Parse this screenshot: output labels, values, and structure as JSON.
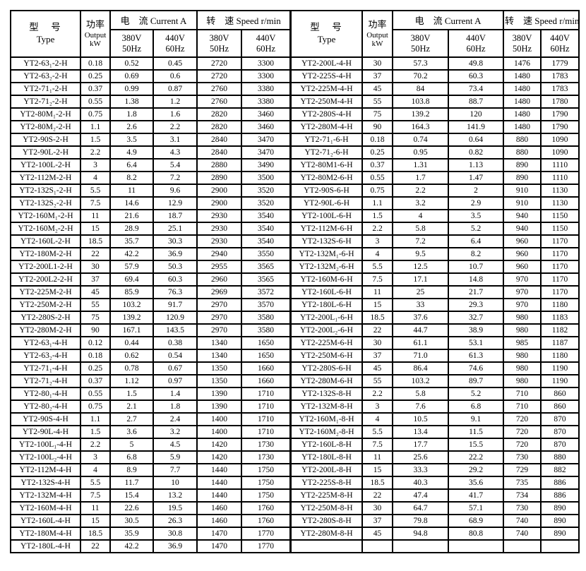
{
  "page": {
    "background_color": "#ffffff",
    "text_color": "#000000",
    "border_color": "#000000"
  },
  "header_labels": {
    "type_zh": "型　号",
    "type_en": "Type",
    "power_zh": "功率",
    "power_en": "Output",
    "power_unit": "kW",
    "current_group": "电　流 Current A",
    "speed_group": "转　速 Speed r/min",
    "col_380v": "380V",
    "col_380hz": "50Hz",
    "col_440v": "440V",
    "col_440hz": "60Hz"
  },
  "left_table": {
    "rows": [
      [
        "YT2-63₁-2-H",
        "0.18",
        "0.52",
        "0.45",
        "2720",
        "3300"
      ],
      [
        "YT2-63₂-2-H",
        "0.25",
        "0.69",
        "0.6",
        "2720",
        "3300"
      ],
      [
        "YT2-71₁-2-H",
        "0.37",
        "0.99",
        "0.87",
        "2760",
        "3380"
      ],
      [
        "YT2-71₂-2-H",
        "0.55",
        "1.38",
        "1.2",
        "2760",
        "3380"
      ],
      [
        "YT2-80M₁-2-H",
        "0.75",
        "1.8",
        "1.6",
        "2820",
        "3460"
      ],
      [
        "YT2-80M₂-2-H",
        "1.1",
        "2.6",
        "2.2",
        "2820",
        "3460"
      ],
      [
        "YT2-90S-2-H",
        "1.5",
        "3.5",
        "3.1",
        "2840",
        "3470"
      ],
      [
        "YT2-90L-2-H",
        "2.2",
        "4.9",
        "4.3",
        "2840",
        "3470"
      ],
      [
        "YT2-100L-2-H",
        "3",
        "6.4",
        "5.4",
        "2880",
        "3490"
      ],
      [
        "YT2-112M-2-H",
        "4",
        "8.2",
        "7.2",
        "2890",
        "3500"
      ],
      [
        "YT2-132S₁-2-H",
        "5.5",
        "11",
        "9.6",
        "2900",
        "3520"
      ],
      [
        "YT2-132S₂-2-H",
        "7.5",
        "14.6",
        "12.9",
        "2900",
        "3520"
      ],
      [
        "YT2-160M₁-2-H",
        "11",
        "21.6",
        "18.7",
        "2930",
        "3540"
      ],
      [
        "YT2-160M₂-2-H",
        "15",
        "28.9",
        "25.1",
        "2930",
        "3540"
      ],
      [
        "YT2-160L-2-H",
        "18.5",
        "35.7",
        "30.3",
        "2930",
        "3540"
      ],
      [
        "YT2-180M-2-H",
        "22",
        "42.2",
        "36.9",
        "2940",
        "3550"
      ],
      [
        "YT2-200L1-2-H",
        "30",
        "57.9",
        "50.3",
        "2955",
        "3565"
      ],
      [
        "YT2-200L2-2-H",
        "37",
        "69.4",
        "60.3",
        "2960",
        "3565"
      ],
      [
        "YT2-225M-2-H",
        "45",
        "85.9",
        "76.3",
        "2969",
        "3572"
      ],
      [
        "YT2-250M-2-H",
        "55",
        "103.2",
        "91.7",
        "2970",
        "3570"
      ],
      [
        "YT2-280S-2-H",
        "75",
        "139.2",
        "120.9",
        "2970",
        "3580"
      ],
      [
        "YT2-280M-2-H",
        "90",
        "167.1",
        "143.5",
        "2970",
        "3580"
      ],
      [
        "YT2-63₁-4-H",
        "0.12",
        "0.44",
        "0.38",
        "1340",
        "1650"
      ],
      [
        "YT2-63₂-4-H",
        "0.18",
        "0.62",
        "0.54",
        "1340",
        "1650"
      ],
      [
        "YT2-71₁-4-H",
        "0.25",
        "0.78",
        "0.67",
        "1350",
        "1660"
      ],
      [
        "YT2-71₂-4-H",
        "0.37",
        "1.12",
        "0.97",
        "1350",
        "1660"
      ],
      [
        "YT2-80₁-4-H",
        "0.55",
        "1.5",
        "1.4",
        "1390",
        "1710"
      ],
      [
        "YT2-80₂-4-H",
        "0.75",
        "2.1",
        "1.8",
        "1390",
        "1710"
      ],
      [
        "YT2-90S-4-H",
        "1.1",
        "2.7",
        "2.4",
        "1400",
        "1710"
      ],
      [
        "YT2-90L-4-H",
        "1.5",
        "3.6",
        "3.2",
        "1400",
        "1710"
      ],
      [
        "YT2-100L₁-4-H",
        "2.2",
        "5",
        "4.5",
        "1420",
        "1730"
      ],
      [
        "YT2-100L₂-4-H",
        "3",
        "6.8",
        "5.9",
        "1420",
        "1730"
      ],
      [
        "YT2-112M-4-H",
        "4",
        "8.9",
        "7.7",
        "1440",
        "1750"
      ],
      [
        "YT2-132S-4-H",
        "5.5",
        "11.7",
        "10",
        "1440",
        "1750"
      ],
      [
        "YT2-132M-4-H",
        "7.5",
        "15.4",
        "13.2",
        "1440",
        "1750"
      ],
      [
        "YT2-160M-4-H",
        "11",
        "22.6",
        "19.5",
        "1460",
        "1760"
      ],
      [
        "YT2-160L-4-H",
        "15",
        "30.5",
        "26.3",
        "1460",
        "1760"
      ],
      [
        "YT2-180M-4-H",
        "18.5",
        "35.9",
        "30.8",
        "1470",
        "1770"
      ],
      [
        "YT2-180L-4-H",
        "22",
        "42.2",
        "36.9",
        "1470",
        "1770"
      ]
    ]
  },
  "right_table": {
    "rows": [
      [
        "YT2-200L-4-H",
        "30",
        "57.3",
        "49.8",
        "1476",
        "1779"
      ],
      [
        "YT2-225S-4-H",
        "37",
        "70.2",
        "60.3",
        "1480",
        "1783"
      ],
      [
        "YT2-225M-4-H",
        "45",
        "84",
        "73.4",
        "1480",
        "1783"
      ],
      [
        "YT2-250M-4-H",
        "55",
        "103.8",
        "88.7",
        "1480",
        "1780"
      ],
      [
        "YT2-280S-4-H",
        "75",
        "139.2",
        "120",
        "1480",
        "1790"
      ],
      [
        "YT2-280M-4-H",
        "90",
        "164.3",
        "141.9",
        "1480",
        "1790"
      ],
      [
        "YT2-71₁-6-H",
        "0.18",
        "0.74",
        "0.64",
        "880",
        "1090"
      ],
      [
        "YT2-71₂-6-H",
        "0.25",
        "0.95",
        "0.82",
        "880",
        "1090"
      ],
      [
        "YT2-80M1-6-H",
        "0.37",
        "1.31",
        "1.13",
        "890",
        "1110"
      ],
      [
        "YT2-80M2-6-H",
        "0.55",
        "1.7",
        "1.47",
        "890",
        "1110"
      ],
      [
        "YT2-90S-6-H",
        "0.75",
        "2.2",
        "2",
        "910",
        "1130"
      ],
      [
        "YT2-90L-6-H",
        "1.1",
        "3.2",
        "2.9",
        "910",
        "1130"
      ],
      [
        "YT2-100L-6-H",
        "1.5",
        "4",
        "3.5",
        "940",
        "1150"
      ],
      [
        "YT2-112M-6-H",
        "2.2",
        "5.8",
        "5.2",
        "940",
        "1150"
      ],
      [
        "YT2-132S-6-H",
        "3",
        "7.2",
        "6.4",
        "960",
        "1170"
      ],
      [
        "YT2-132M₁-6-H",
        "4",
        "9.5",
        "8.2",
        "960",
        "1170"
      ],
      [
        "YT2-132M₂-6-H",
        "5.5",
        "12.5",
        "10.7",
        "960",
        "1170"
      ],
      [
        "YT2-160M-6-H",
        "7.5",
        "17.1",
        "14.8",
        "970",
        "1170"
      ],
      [
        "YT2-160L-6-H",
        "11",
        "25",
        "21.7",
        "970",
        "1170"
      ],
      [
        "YT2-180L-6-H",
        "15",
        "33",
        "29.3",
        "970",
        "1180"
      ],
      [
        "YT2-200L₁-6-H",
        "18.5",
        "37.6",
        "32.7",
        "980",
        "1183"
      ],
      [
        "YT2-200L₂-6-H",
        "22",
        "44.7",
        "38.9",
        "980",
        "1182"
      ],
      [
        "YT2-225M-6-H",
        "30",
        "61.1",
        "53.1",
        "985",
        "1187"
      ],
      [
        "YT2-250M-6-H",
        "37",
        "71.0",
        "61.3",
        "980",
        "1180"
      ],
      [
        "YT2-280S-6-H",
        "45",
        "86.4",
        "74.6",
        "980",
        "1190"
      ],
      [
        "YT2-280M-6-H",
        "55",
        "103.2",
        "89.7",
        "980",
        "1190"
      ],
      [
        "YT2-132S-8-H",
        "2.2",
        "5.8",
        "5.2",
        "710",
        "860"
      ],
      [
        "YT2-132M-8-H",
        "3",
        "7.6",
        "6.8",
        "710",
        "860"
      ],
      [
        "YT2-160M₁-8-H",
        "4",
        "10.5",
        "9.1",
        "720",
        "870"
      ],
      [
        "YT2-160M₂-8-H",
        "5.5",
        "13.4",
        "11.5",
        "720",
        "870"
      ],
      [
        "YT2-160L-8-H",
        "7.5",
        "17.7",
        "15.5",
        "720",
        "870"
      ],
      [
        "YT2-180L-8-H",
        "11",
        "25.6",
        "22.2",
        "730",
        "880"
      ],
      [
        "YT2-200L-8-H",
        "15",
        "33.3",
        "29.2",
        "729",
        "882"
      ],
      [
        "YT2-225S-8-H",
        "18.5",
        "40.3",
        "35.6",
        "735",
        "886"
      ],
      [
        "YT2-225M-8-H",
        "22",
        "47.4",
        "41.7",
        "734",
        "886"
      ],
      [
        "YT2-250M-8-H",
        "30",
        "64.7",
        "57.1",
        "730",
        "890"
      ],
      [
        "YT2-280S-8-H",
        "37",
        "79.8",
        "68.9",
        "740",
        "890"
      ],
      [
        "YT2-280M-8-H",
        "45",
        "94.8",
        "80.8",
        "740",
        "890"
      ],
      [
        "",
        "",
        "",
        "",
        "",
        ""
      ]
    ]
  }
}
